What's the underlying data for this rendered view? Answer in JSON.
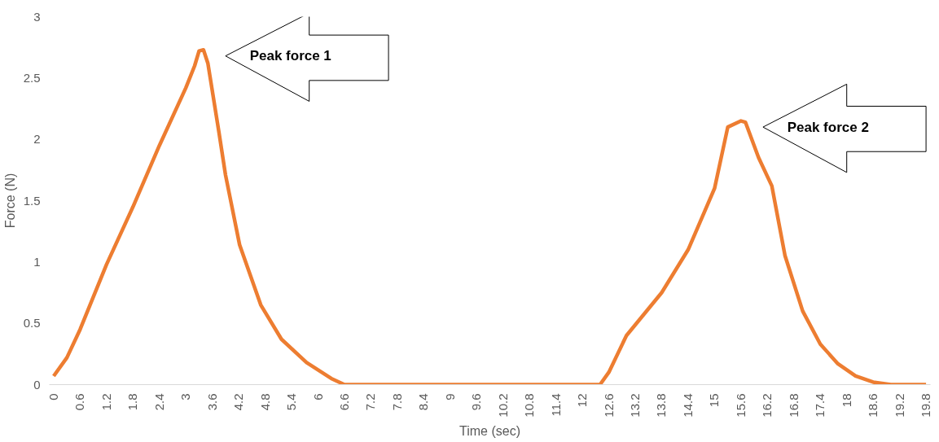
{
  "chart_data": {
    "type": "line",
    "xlabel": "Time (sec)",
    "ylabel": "Force (N)",
    "xlim": [
      -0.1,
      19.9
    ],
    "ylim": [
      0,
      3
    ],
    "xticks": [
      0,
      0.6,
      1.2,
      1.8,
      2.4,
      3,
      3.6,
      4.2,
      4.8,
      5.4,
      6,
      6.6,
      7.2,
      7.8,
      8.4,
      9,
      9.6,
      10.2,
      10.8,
      11.4,
      12,
      12.6,
      13.2,
      13.8,
      14.4,
      15,
      15.6,
      16.2,
      16.8,
      17.4,
      18,
      18.6,
      19.2,
      19.8
    ],
    "yticks": [
      0,
      0.5,
      1,
      1.5,
      2,
      2.5,
      3
    ],
    "grid": false,
    "marker": "none",
    "line_style": "solid",
    "series": [
      {
        "color": "#ed7d31",
        "x": [
          0,
          0.3,
          0.6,
          1.2,
          1.8,
          2.4,
          3.0,
          3.2,
          3.3,
          3.4,
          3.5,
          3.75,
          3.9,
          4.22,
          4.7,
          5.17,
          5.74,
          6.3,
          6.6,
          9,
          12.4,
          12.6,
          13.0,
          13.8,
          14.4,
          15.0,
          15.3,
          15.6,
          15.7,
          16.0,
          16.3,
          16.6,
          17.0,
          17.4,
          17.8,
          18.2,
          18.6,
          19.0,
          19.8
        ],
        "values": [
          0.07,
          0.22,
          0.45,
          0.98,
          1.45,
          1.95,
          2.42,
          2.6,
          2.72,
          2.73,
          2.62,
          2.06,
          1.71,
          1.14,
          0.65,
          0.37,
          0.18,
          0.05,
          0,
          0,
          0,
          0.1,
          0.4,
          0.75,
          1.1,
          1.6,
          2.1,
          2.15,
          2.14,
          1.85,
          1.62,
          1.05,
          0.6,
          0.33,
          0.17,
          0.07,
          0.02,
          0,
          0
        ]
      }
    ],
    "annotations": [
      "Peak force 1",
      "Peak force 2"
    ]
  }
}
